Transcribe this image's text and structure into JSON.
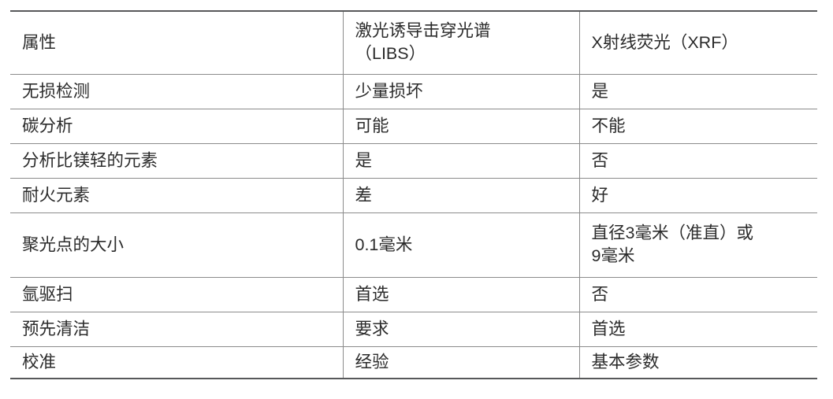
{
  "table": {
    "title_semantic": "LIBS vs XRF comparison table",
    "header": [
      {
        "lines": [
          "属性"
        ]
      },
      {
        "lines": [
          "激光诱导击穿光谱",
          "（LIBS）"
        ]
      },
      {
        "lines": [
          "X射线荧光（XRF）"
        ]
      }
    ],
    "rows": [
      {
        "cells": [
          [
            "无损检测"
          ],
          [
            "少量损坏"
          ],
          [
            "是"
          ]
        ]
      },
      {
        "cells": [
          [
            "碳分析"
          ],
          [
            "可能"
          ],
          [
            "不能"
          ]
        ]
      },
      {
        "cells": [
          [
            "分析比镁轻的元素"
          ],
          [
            "是"
          ],
          [
            "否"
          ]
        ]
      },
      {
        "cells": [
          [
            "耐火元素"
          ],
          [
            "差"
          ],
          [
            "好"
          ]
        ]
      },
      {
        "cells": [
          [
            "聚光点的大小"
          ],
          [
            "0.1毫米"
          ],
          [
            "直径3毫米（准直）或",
            "9毫米"
          ]
        ]
      },
      {
        "cells": [
          [
            "氩驱扫"
          ],
          [
            "首选"
          ],
          [
            "否"
          ]
        ]
      },
      {
        "cells": [
          [
            "预先清洁"
          ],
          [
            "要求"
          ],
          [
            "首选"
          ]
        ]
      },
      {
        "cells": [
          [
            "校准"
          ],
          [
            "经验"
          ],
          [
            "基本参数"
          ]
        ]
      }
    ],
    "colors": {
      "text": "#2b2b2b",
      "outer_border": "#57585a",
      "inner_border": "#8b8b8b",
      "background": "#ffffff"
    }
  }
}
